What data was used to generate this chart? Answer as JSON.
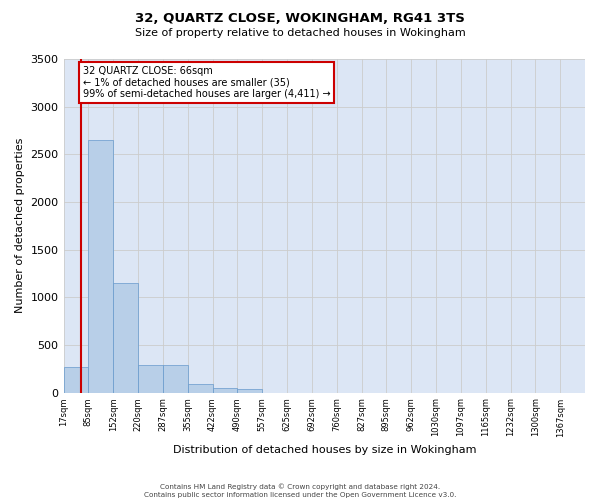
{
  "title": "32, QUARTZ CLOSE, WOKINGHAM, RG41 3TS",
  "subtitle": "Size of property relative to detached houses in Wokingham",
  "xlabel": "Distribution of detached houses by size in Wokingham",
  "ylabel": "Number of detached properties",
  "footer_line1": "Contains HM Land Registry data © Crown copyright and database right 2024.",
  "footer_line2": "Contains public sector information licensed under the Open Government Licence v3.0.",
  "categories": [
    "17sqm",
    "85sqm",
    "152sqm",
    "220sqm",
    "287sqm",
    "355sqm",
    "422sqm",
    "490sqm",
    "557sqm",
    "625sqm",
    "692sqm",
    "760sqm",
    "827sqm",
    "895sqm",
    "962sqm",
    "1030sqm",
    "1097sqm",
    "1165sqm",
    "1232sqm",
    "1300sqm",
    "1367sqm"
  ],
  "values": [
    270,
    2650,
    1145,
    285,
    285,
    95,
    50,
    35,
    0,
    0,
    0,
    0,
    0,
    0,
    0,
    0,
    0,
    0,
    0,
    0,
    0
  ],
  "bar_color": "#b8cfe8",
  "bar_edge_color": "#6699cc",
  "grid_color": "#cccccc",
  "background_color": "#dce6f5",
  "annotation_text": "32 QUARTZ CLOSE: 66sqm\n← 1% of detached houses are smaller (35)\n99% of semi-detached houses are larger (4,411) →",
  "annotation_box_color": "#ffffff",
  "annotation_box_edge": "#cc0000",
  "marker_color": "#cc0000",
  "ylim": [
    0,
    3500
  ],
  "yticks": [
    0,
    500,
    1000,
    1500,
    2000,
    2500,
    3000,
    3500
  ]
}
